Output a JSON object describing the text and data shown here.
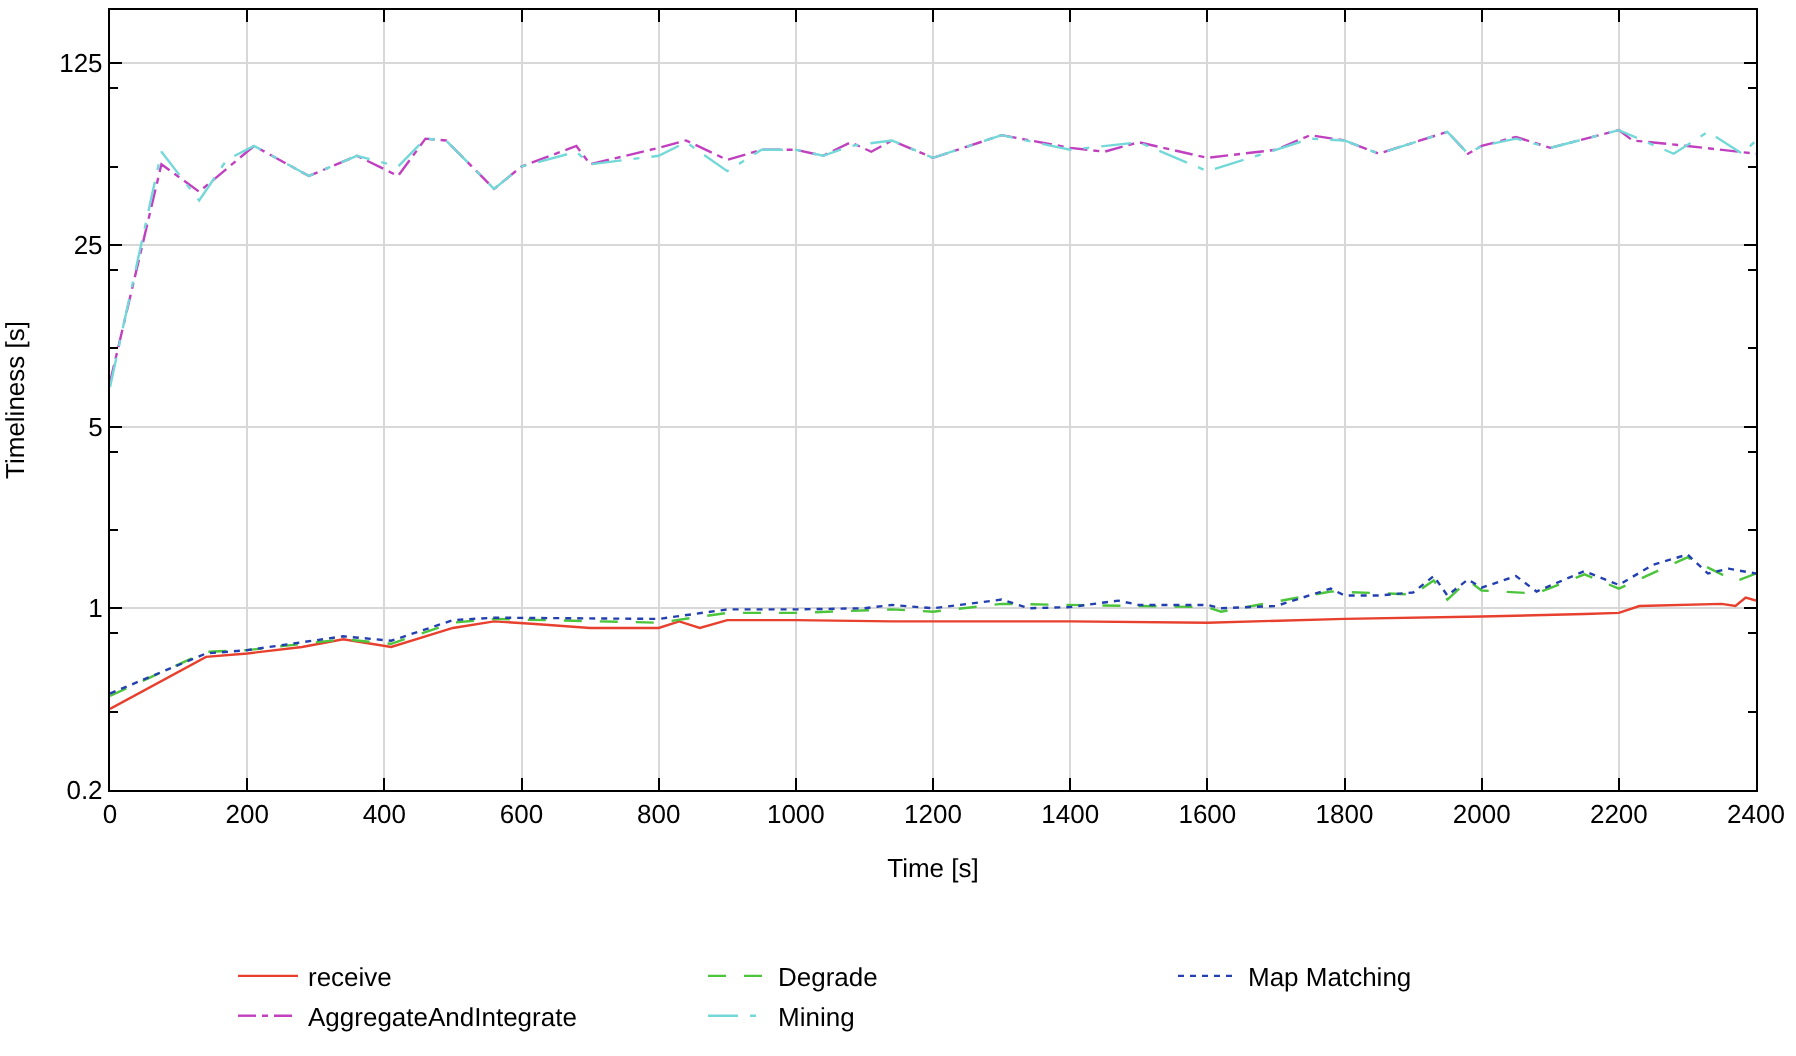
{
  "chart_data": {
    "type": "line",
    "xlabel": "Time [s]",
    "ylabel": "Timeliness [s]",
    "xlim": [
      0,
      2400
    ],
    "xticks": [
      0,
      200,
      400,
      600,
      800,
      1000,
      1200,
      1400,
      1600,
      1800,
      2000,
      2200,
      2400
    ],
    "ylim": [
      0.2,
      200
    ],
    "yticks": [
      0.2,
      {
        "value": 0.4,
        "label": null
      },
      {
        "value": 0.8,
        "label": null
      },
      1,
      {
        "value": 2,
        "label": null
      },
      {
        "value": 4,
        "label": null
      },
      5,
      {
        "value": 10,
        "label": null
      },
      {
        "value": 20,
        "label": null
      },
      25,
      {
        "value": 50,
        "label": null
      },
      {
        "value": 100,
        "label": null
      },
      125
    ],
    "log": "y",
    "grid": true,
    "legend": "bottom",
    "series": [
      {
        "name": "receive",
        "color": "#e8402e",
        "line_style": "solid",
        "x": [
          0,
          140,
          200,
          280,
          340,
          410,
          500,
          560,
          620,
          700,
          800,
          830,
          860,
          900,
          1000,
          1140,
          1200,
          1400,
          1600,
          1800,
          2000,
          2150,
          2200,
          2230,
          2350,
          2370,
          2385,
          2400
        ],
        "values": [
          0.41,
          0.65,
          0.67,
          0.71,
          0.76,
          0.71,
          0.84,
          0.89,
          0.87,
          0.84,
          0.84,
          0.89,
          0.84,
          0.9,
          0.9,
          0.89,
          0.89,
          0.89,
          0.88,
          0.91,
          0.93,
          0.95,
          0.96,
          1.02,
          1.04,
          1.02,
          1.1,
          1.07
        ]
      },
      {
        "name": "Degrade",
        "color": "#4cc43c",
        "line_style": "dashed",
        "x": [
          0,
          140,
          200,
          340,
          410,
          500,
          560,
          800,
          900,
          1000,
          1140,
          1200,
          1300,
          1600,
          1620,
          1780,
          1900,
          1930,
          1950,
          1980,
          2000,
          2080,
          2150,
          2200,
          2300,
          2370,
          2400
        ],
        "values": [
          0.46,
          0.68,
          0.69,
          0.76,
          0.73,
          0.88,
          0.91,
          0.88,
          0.96,
          0.96,
          0.99,
          0.97,
          1.04,
          1.01,
          0.97,
          1.16,
          1.13,
          1.28,
          1.08,
          1.28,
          1.17,
          1.14,
          1.35,
          1.19,
          1.57,
          1.27,
          1.36
        ]
      },
      {
        "name": "Map Matching",
        "color": "#2440b0",
        "line_style": "dotted",
        "x": [
          0,
          140,
          200,
          340,
          410,
          500,
          560,
          800,
          900,
          1000,
          1100,
          1140,
          1200,
          1300,
          1340,
          1400,
          1470,
          1500,
          1600,
          1620,
          1700,
          1780,
          1800,
          1850,
          1900,
          1930,
          1950,
          1980,
          2000,
          2050,
          2080,
          2150,
          2200,
          2250,
          2300,
          2330,
          2360,
          2400
        ],
        "values": [
          0.47,
          0.67,
          0.69,
          0.78,
          0.75,
          0.9,
          0.92,
          0.91,
          0.99,
          0.99,
          1.0,
          1.03,
          1.0,
          1.08,
          1.0,
          1.01,
          1.07,
          1.03,
          1.03,
          1.0,
          1.02,
          1.19,
          1.12,
          1.12,
          1.15,
          1.33,
          1.12,
          1.29,
          1.2,
          1.33,
          1.16,
          1.39,
          1.23,
          1.47,
          1.61,
          1.36,
          1.42,
          1.36
        ]
      },
      {
        "name": "AggregateAndIntegrate",
        "color": "#c040c0",
        "line_style": "dashdot",
        "x": [
          0,
          75,
          130,
          210,
          290,
          360,
          420,
          460,
          490,
          560,
          600,
          680,
          700,
          800,
          840,
          900,
          950,
          1000,
          1040,
          1080,
          1110,
          1140,
          1200,
          1300,
          1400,
          1450,
          1500,
          1600,
          1700,
          1750,
          1800,
          1850,
          1950,
          1980,
          2000,
          2050,
          2100,
          2200,
          2220,
          2300,
          2400
        ],
        "values": [
          7.4,
          51,
          40,
          60,
          46,
          55,
          46,
          64,
          63,
          41,
          50,
          60,
          51,
          59,
          63,
          53,
          58,
          58,
          55,
          62,
          57,
          63,
          54,
          66,
          59,
          57,
          62,
          54,
          58,
          66,
          63,
          56,
          68,
          56,
          60,
          65,
          59,
          69,
          63,
          60,
          56
        ]
      },
      {
        "name": "Mining",
        "color": "#74d8d8",
        "line_style": "longdashdot",
        "x": [
          0,
          75,
          130,
          170,
          210,
          290,
          360,
          420,
          460,
          490,
          560,
          600,
          680,
          700,
          800,
          840,
          900,
          950,
          1000,
          1040,
          1080,
          1140,
          1200,
          1300,
          1400,
          1500,
          1600,
          1700,
          1750,
          1800,
          1850,
          1950,
          1980,
          2000,
          2050,
          2100,
          2200,
          2280,
          2330,
          2380,
          2400
        ],
        "values": [
          7.1,
          57,
          37,
          53,
          60,
          46,
          55,
          50,
          64,
          63,
          41,
          50,
          57,
          51,
          55,
          62,
          48,
          58,
          58,
          55,
          60,
          63,
          54,
          66,
          58,
          62,
          48,
          58,
          64,
          63,
          56,
          68,
          56,
          60,
          64,
          59,
          69,
          56,
          68,
          56,
          63
        ]
      }
    ]
  }
}
